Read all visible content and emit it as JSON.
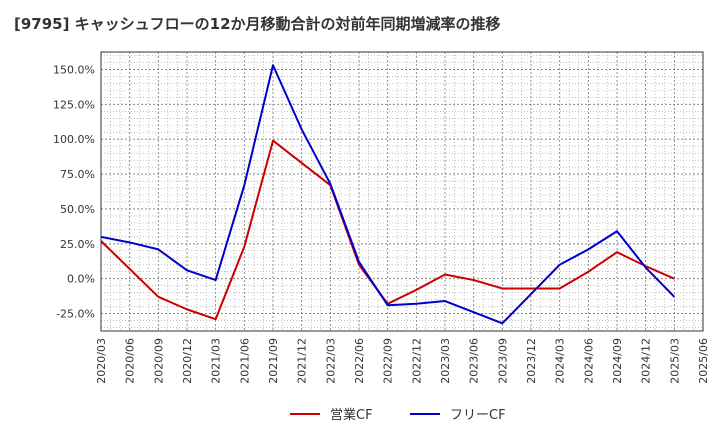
{
  "chart_data": {
    "type": "line",
    "title": "[9795]  キャッシュフローの12か月移動合計の対前年同期増減率の推移",
    "xlabel": "",
    "ylabel": "",
    "ylim": [
      -37.5,
      162.5
    ],
    "yticks": [
      -25,
      0,
      25,
      50,
      75,
      100,
      125,
      150
    ],
    "ytick_labels": [
      "-25.0%",
      "0.0%",
      "25.0%",
      "50.0%",
      "75.0%",
      "100.0%",
      "125.0%",
      "150.0%"
    ],
    "categories": [
      "2020/03",
      "2020/06",
      "2020/09",
      "2020/12",
      "2021/03",
      "2021/06",
      "2021/09",
      "2021/12",
      "2022/03",
      "2022/06",
      "2022/09",
      "2022/12",
      "2023/03",
      "2023/06",
      "2023/09",
      "2023/12",
      "2024/03",
      "2024/06",
      "2024/09",
      "2024/12",
      "2025/03",
      "2025/06"
    ],
    "grid": true,
    "legend": "bottom-center",
    "series": [
      {
        "name": "営業CF",
        "color": "#cc0000",
        "values": [
          27,
          7,
          -13,
          -22,
          -29,
          23,
          99,
          83,
          67,
          10,
          -18,
          -8,
          3,
          -1,
          -7,
          -7,
          -7,
          5,
          19,
          9,
          0,
          null
        ]
      },
      {
        "name": "フリーCF",
        "color": "#0000cc",
        "values": [
          30,
          26,
          21,
          6,
          -1,
          67,
          153,
          107,
          68,
          12,
          -19,
          -18,
          -16,
          -24,
          -32,
          -11,
          10,
          21,
          34,
          8,
          -13,
          null
        ]
      }
    ]
  }
}
